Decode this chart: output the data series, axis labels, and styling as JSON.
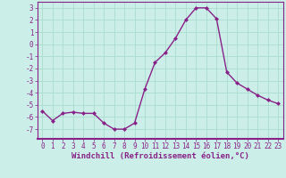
{
  "x": [
    0,
    1,
    2,
    3,
    4,
    5,
    6,
    7,
    8,
    9,
    10,
    11,
    12,
    13,
    14,
    15,
    16,
    17,
    18,
    19,
    20,
    21,
    22,
    23
  ],
  "y": [
    -5.5,
    -6.3,
    -5.7,
    -5.6,
    -5.7,
    -5.7,
    -6.5,
    -7.0,
    -7.0,
    -6.5,
    -3.7,
    -1.5,
    -0.7,
    0.5,
    2.0,
    3.0,
    3.0,
    2.1,
    -2.3,
    -3.2,
    -3.7,
    -4.2,
    -4.6,
    -4.9
  ],
  "line_color": "#882288",
  "marker": "D",
  "markersize": 2.0,
  "linewidth": 1.0,
  "xlabel": "Windchill (Refroidissement éolien,°C)",
  "ylim": [
    -7.8,
    3.5
  ],
  "xlim": [
    -0.5,
    23.5
  ],
  "yticks": [
    -7,
    -6,
    -5,
    -4,
    -3,
    -2,
    -1,
    0,
    1,
    2,
    3
  ],
  "xticks": [
    0,
    1,
    2,
    3,
    4,
    5,
    6,
    7,
    8,
    9,
    10,
    11,
    12,
    13,
    14,
    15,
    16,
    17,
    18,
    19,
    20,
    21,
    22,
    23
  ],
  "bg_color": "#cceee8",
  "grid_color": "#aaddcc",
  "line_border_color": "#882288",
  "xlabel_fontsize": 6.5,
  "tick_fontsize": 5.5
}
